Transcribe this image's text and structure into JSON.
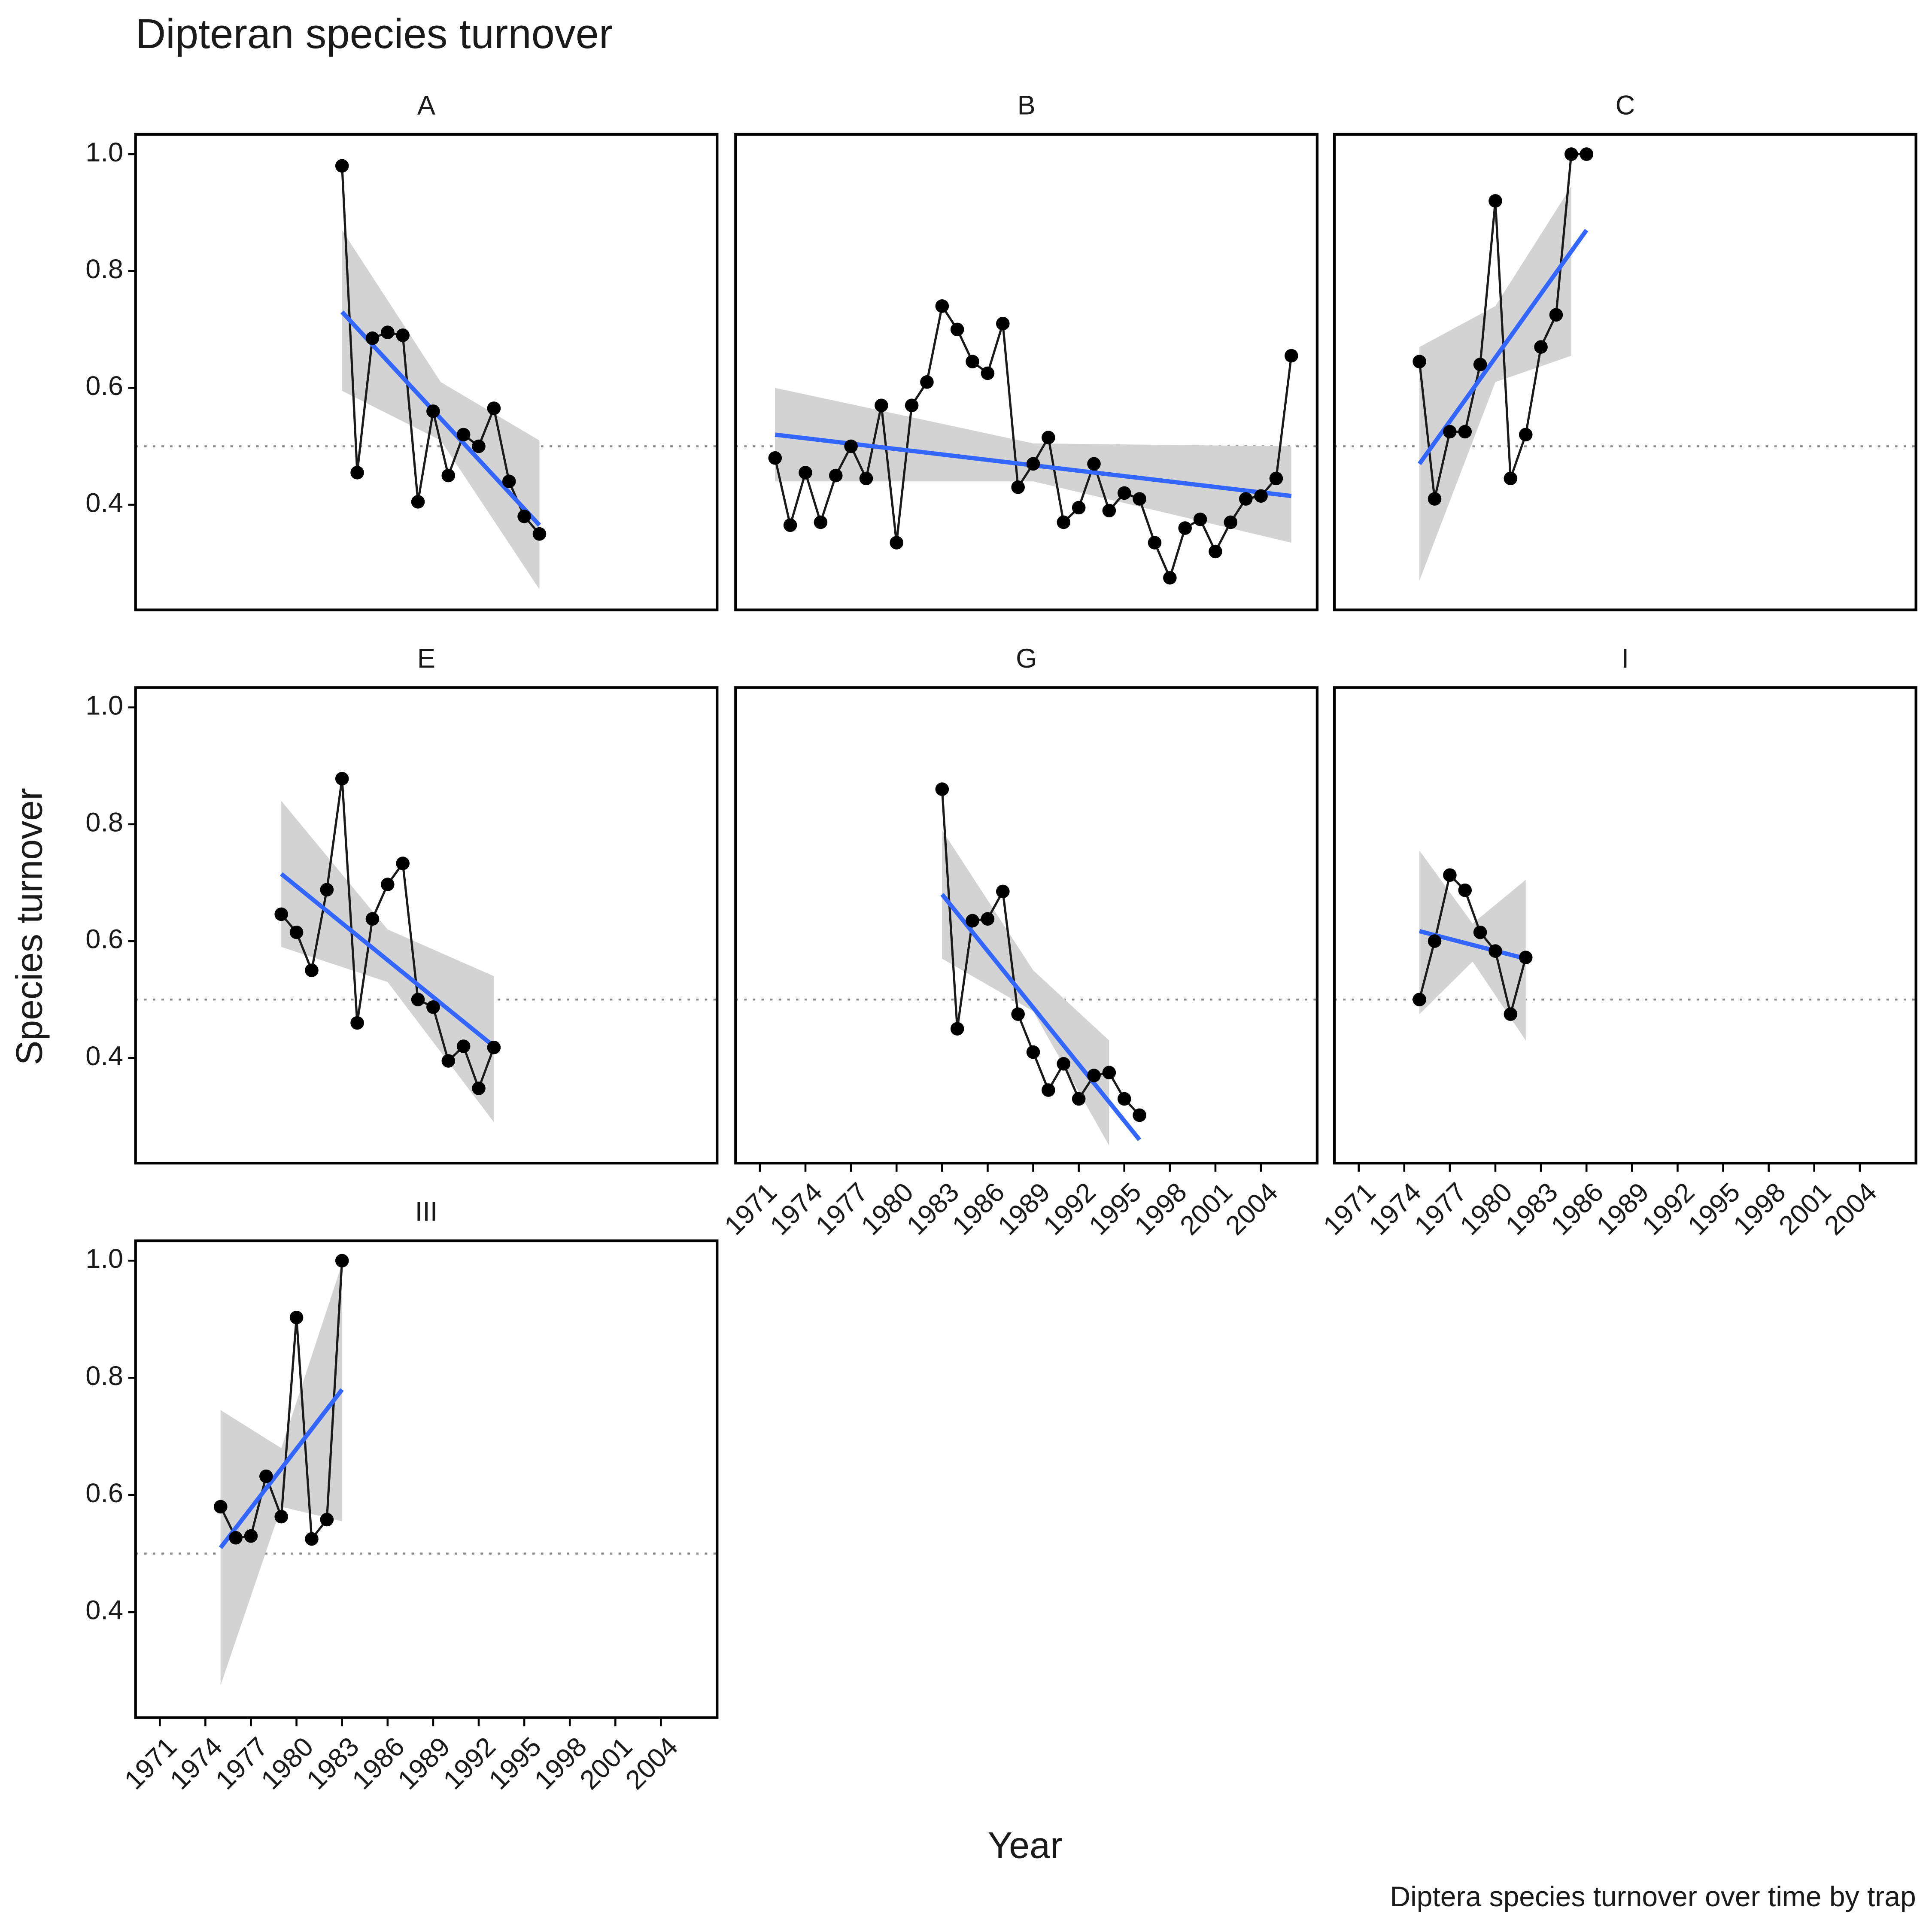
{
  "title": "Dipteran species turnover",
  "x_label": "Year",
  "y_label": "Species turnover",
  "caption": "Diptera species turnover over time by trap",
  "chart_data": [
    {
      "type": "line",
      "title": "A",
      "x": [
        1983,
        1984,
        1985,
        1986,
        1987,
        1988,
        1989,
        1990,
        1991,
        1992,
        1993,
        1994,
        1995,
        1996
      ],
      "values": [
        0.98,
        0.455,
        0.685,
        0.695,
        0.69,
        0.405,
        0.56,
        0.45,
        0.52,
        0.5,
        0.565,
        0.44,
        0.38,
        0.35
      ],
      "fit": {
        "x": [
          1983,
          1996
        ],
        "y": [
          0.73,
          0.365
        ]
      },
      "band": {
        "x": [
          1983,
          1989.5,
          1996
        ],
        "lower": [
          0.595,
          0.51,
          0.255
        ],
        "upper": [
          0.87,
          0.61,
          0.51
        ]
      },
      "hline": 0.5,
      "xlim": [
        1969.4,
        2007.7
      ],
      "ylim": [
        0.22,
        1.034
      ],
      "yticks": [
        0.4,
        0.6,
        0.8,
        {
          "value": 1.0,
          "label": "1.0"
        }
      ]
    },
    {
      "type": "line",
      "title": "B",
      "x": [
        1972,
        1973,
        1974,
        1975,
        1976,
        1977,
        1978,
        1979,
        1980,
        1981,
        1982,
        1983,
        1984,
        1985,
        1986,
        1987,
        1988,
        1989,
        1990,
        1991,
        1992,
        1993,
        1994,
        1995,
        1996,
        1997,
        1998,
        1999,
        2000,
        2001,
        2002,
        2003,
        2004,
        2005,
        2006
      ],
      "values": [
        0.48,
        0.365,
        0.455,
        0.37,
        0.45,
        0.5,
        0.445,
        0.57,
        0.335,
        0.57,
        0.61,
        0.74,
        0.7,
        0.645,
        0.625,
        0.71,
        0.43,
        0.47,
        0.515,
        0.37,
        0.395,
        0.47,
        0.39,
        0.42,
        0.41,
        0.335,
        0.275,
        0.36,
        0.375,
        0.32,
        0.37,
        0.41,
        0.415,
        0.445,
        0.655
      ],
      "fit": {
        "x": [
          1972,
          2006
        ],
        "y": [
          0.52,
          0.415
        ]
      },
      "band": {
        "x": [
          1972,
          1989,
          2006
        ],
        "lower": [
          0.44,
          0.44,
          0.335
        ],
        "upper": [
          0.6,
          0.505,
          0.5
        ]
      },
      "hline": 0.5,
      "xlim": [
        1969.4,
        2007.7
      ],
      "ylim": [
        0.22,
        1.034
      ]
    },
    {
      "type": "line",
      "title": "C",
      "x": [
        1975,
        1976,
        1977,
        1978,
        1979,
        1980,
        1981,
        1982,
        1983,
        1984,
        1985,
        1986
      ],
      "values": [
        0.645,
        0.41,
        0.525,
        0.525,
        0.64,
        0.92,
        0.445,
        0.52,
        0.67,
        0.725,
        1.0,
        1.0
      ],
      "fit": {
        "x": [
          1975,
          1986
        ],
        "y": [
          0.47,
          0.87
        ]
      },
      "band": {
        "x": [
          1975,
          1980,
          1985
        ],
        "lower": [
          0.27,
          0.61,
          0.655
        ],
        "upper": [
          0.67,
          0.74,
          0.945
        ]
      },
      "hline": 0.5,
      "xlim": [
        1969.4,
        2007.7
      ],
      "ylim": [
        0.22,
        1.034
      ]
    },
    {
      "type": "line",
      "title": "E",
      "x": [
        1979,
        1980,
        1981,
        1982,
        1983,
        1984,
        1985,
        1986,
        1987,
        1988,
        1989,
        1990,
        1991,
        1992,
        1993
      ],
      "values": [
        0.646,
        0.615,
        0.55,
        0.688,
        0.878,
        0.46,
        0.638,
        0.697,
        0.733,
        0.5,
        0.487,
        0.395,
        0.42,
        0.348,
        0.418
      ],
      "fit": {
        "x": [
          1979,
          1993
        ],
        "y": [
          0.715,
          0.42
        ]
      },
      "band": {
        "x": [
          1979,
          1986,
          1993
        ],
        "lower": [
          0.59,
          0.53,
          0.29
        ],
        "upper": [
          0.84,
          0.62,
          0.54
        ]
      },
      "hline": 0.5,
      "xlim": [
        1969.4,
        2007.7
      ],
      "ylim": [
        0.22,
        1.034
      ],
      "yticks": [
        0.4,
        0.6,
        0.8,
        {
          "value": 1.0,
          "label": "1.0"
        }
      ]
    },
    {
      "type": "line",
      "title": "G",
      "x": [
        1983,
        1984,
        1985,
        1986,
        1987,
        1988,
        1989,
        1990,
        1991,
        1992,
        1993,
        1994,
        1995,
        1996
      ],
      "values": [
        0.86,
        0.45,
        0.635,
        0.638,
        0.685,
        0.475,
        0.41,
        0.345,
        0.39,
        0.33,
        0.37,
        0.375,
        0.33,
        0.302
      ],
      "fit": {
        "x": [
          1983,
          1996
        ],
        "y": [
          0.68,
          0.26
        ]
      },
      "band": {
        "x": [
          1983,
          1989,
          1994
        ],
        "lower": [
          0.57,
          0.48,
          0.25
        ],
        "upper": [
          0.79,
          0.55,
          0.43
        ]
      },
      "hline": 0.5,
      "xlim": [
        1969.4,
        2007.7
      ],
      "ylim": [
        0.22,
        1.034
      ],
      "xticks": [
        1971,
        1974,
        1977,
        1980,
        1983,
        1986,
        1989,
        1992,
        1995,
        1998,
        2001,
        2004
      ]
    },
    {
      "type": "line",
      "title": "I",
      "x": [
        1975,
        1976,
        1977,
        1978,
        1979,
        1980,
        1981,
        1982
      ],
      "values": [
        0.5,
        0.6,
        0.713,
        0.687,
        0.615,
        0.583,
        0.475,
        0.572
      ],
      "fit": {
        "x": [
          1975,
          1982
        ],
        "y": [
          0.617,
          0.57
        ]
      },
      "band": {
        "x": [
          1975,
          1978.5,
          1982
        ],
        "lower": [
          0.475,
          0.565,
          0.43
        ],
        "upper": [
          0.755,
          0.63,
          0.705
        ]
      },
      "hline": 0.5,
      "xlim": [
        1969.4,
        2007.7
      ],
      "ylim": [
        0.22,
        1.034
      ],
      "xticks": [
        1971,
        1974,
        1977,
        1980,
        1983,
        1986,
        1989,
        1992,
        1995,
        1998,
        2001,
        2004
      ]
    },
    {
      "type": "line",
      "title": "III",
      "x": [
        1975,
        1976,
        1977,
        1978,
        1979,
        1980,
        1981,
        1982,
        1983
      ],
      "values": [
        0.58,
        0.527,
        0.53,
        0.632,
        0.563,
        0.903,
        0.525,
        0.558,
        1.0
      ],
      "fit": {
        "x": [
          1975,
          1983
        ],
        "y": [
          0.51,
          0.78
        ]
      },
      "band": {
        "x": [
          1975,
          1979,
          1983
        ],
        "lower": [
          0.275,
          0.58,
          0.555
        ],
        "upper": [
          0.745,
          0.68,
          0.995
        ]
      },
      "hline": 0.5,
      "xlim": [
        1969.4,
        2007.7
      ],
      "ylim": [
        0.22,
        1.034
      ],
      "yticks": [
        0.4,
        0.6,
        0.8,
        {
          "value": 1.0,
          "label": "1.0"
        }
      ],
      "xticks": [
        1971,
        1974,
        1977,
        1980,
        1983,
        1986,
        1989,
        1992,
        1995,
        1998,
        2001,
        2004
      ]
    }
  ]
}
